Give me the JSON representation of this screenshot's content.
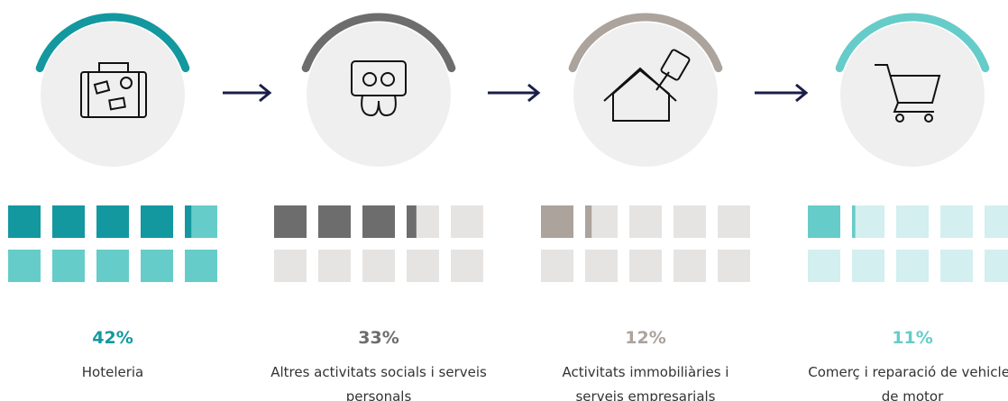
{
  "chart_data": {
    "type": "waffle",
    "categories": [
      "Hoteleria",
      "Altres activitats socials i serveis personals",
      "Activitats immobiliàries i serveis empresarials",
      "Comerç i reparació de vehicles de motor"
    ],
    "values": [
      42,
      33,
      12,
      11
    ],
    "value_labels": [
      "42%",
      "33%",
      "12%",
      "11%"
    ],
    "colors": [
      "#13989f",
      "#6d6d6d",
      "#aba39c",
      "#66ccc9"
    ],
    "rest_colors": [
      "#66ccc9",
      "#e6e4e2",
      "#e6e4e2",
      "#d3eff0"
    ]
  }
}
